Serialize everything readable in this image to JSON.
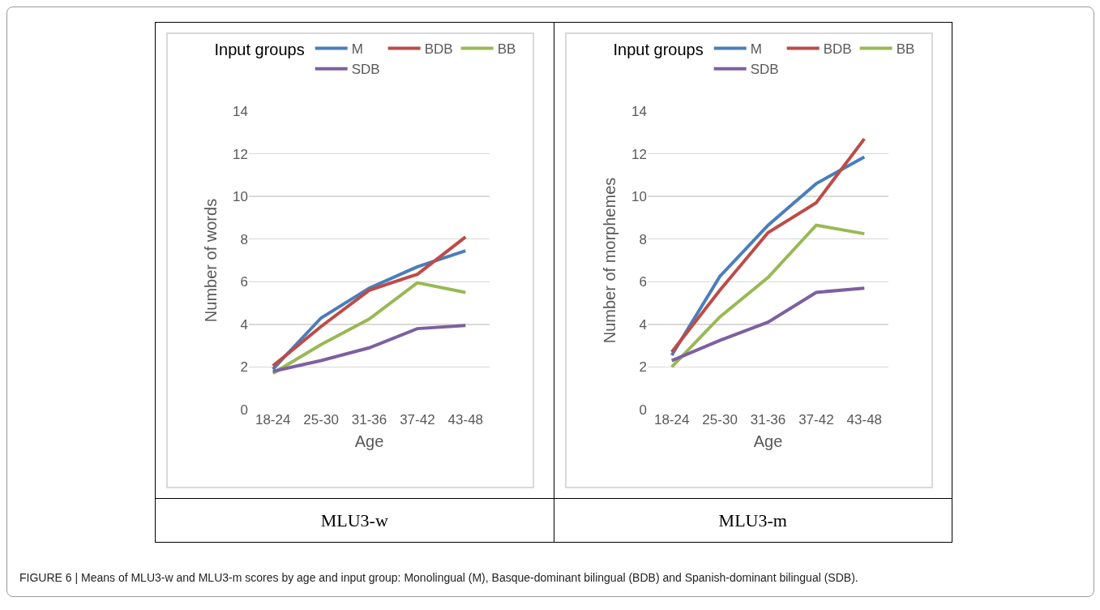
{
  "chart_data": [
    {
      "type": "line",
      "title": "MLU3-w",
      "xlabel": "Age",
      "ylabel": "Number of words",
      "legend_title": "Input groups",
      "categories": [
        "18-24",
        "25-30",
        "31-36",
        "37-42",
        "43-48"
      ],
      "series": [
        {
          "name": "M",
          "color": "#4a7ebb",
          "values": [
            1.9,
            4.3,
            5.7,
            6.7,
            7.45
          ]
        },
        {
          "name": "BDB",
          "color": "#be4b48",
          "values": [
            2.05,
            3.9,
            5.6,
            6.35,
            8.1
          ]
        },
        {
          "name": "BB",
          "color": "#98b954",
          "values": [
            1.7,
            3.05,
            4.25,
            5.95,
            5.5
          ]
        },
        {
          "name": "SDB",
          "color": "#7d60a0",
          "values": [
            1.8,
            2.3,
            2.9,
            3.8,
            3.95
          ]
        }
      ],
      "ylim": [
        0,
        14
      ],
      "yticks": [
        0,
        2,
        4,
        6,
        8,
        10,
        12,
        14
      ],
      "grid": "y",
      "legend": "top",
      "line_style": "solid"
    },
    {
      "type": "line",
      "title": "MLU3-m",
      "xlabel": "Age",
      "ylabel": "Number of morphemes",
      "legend_title": "Input groups",
      "categories": [
        "18-24",
        "25-30",
        "31-36",
        "37-42",
        "43-48"
      ],
      "series": [
        {
          "name": "M",
          "color": "#4a7ebb",
          "values": [
            2.55,
            6.25,
            8.65,
            10.6,
            11.85
          ]
        },
        {
          "name": "BDB",
          "color": "#be4b48",
          "values": [
            2.7,
            5.6,
            8.3,
            9.7,
            12.7
          ]
        },
        {
          "name": "BB",
          "color": "#98b954",
          "values": [
            2.0,
            4.35,
            6.2,
            8.65,
            8.25
          ]
        },
        {
          "name": "SDB",
          "color": "#7d60a0",
          "values": [
            2.3,
            3.25,
            4.1,
            5.5,
            5.7
          ]
        }
      ],
      "ylim": [
        0,
        14
      ],
      "yticks": [
        0,
        2,
        4,
        6,
        8,
        10,
        12,
        14
      ],
      "grid": "y",
      "legend": "top",
      "line_style": "solid",
      "annotations": [
        "FIGURE 6 | Means of MLU3-w and MLU3-m scores by age and input group: Monolingual (M), Basque-dominant bilingual (BDB) and Spanish-dominant bilingual (SDB)."
      ]
    }
  ]
}
